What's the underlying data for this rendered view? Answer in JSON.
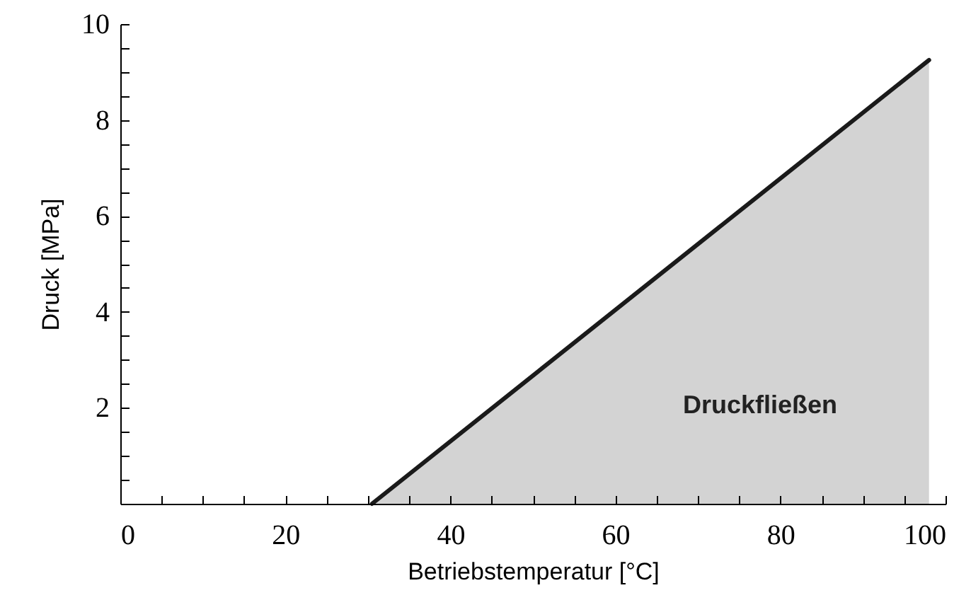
{
  "chart_data": {
    "type": "area",
    "xlabel": "Betriebstemperatur [°C]",
    "ylabel": "Druck [MPa]",
    "xlim": [
      0,
      100
    ],
    "ylim": [
      0,
      10
    ],
    "xticks": [
      0,
      {
        "value": 5,
        "label": null
      },
      {
        "value": 10,
        "label": null
      },
      {
        "value": 15,
        "label": null
      },
      20,
      {
        "value": 25,
        "label": null
      },
      {
        "value": 30,
        "label": null
      },
      {
        "value": 35,
        "label": null
      },
      40,
      {
        "value": 45,
        "label": null
      },
      {
        "value": 50,
        "label": null
      },
      {
        "value": 55,
        "label": null
      },
      60,
      {
        "value": 65,
        "label": null
      },
      {
        "value": 70,
        "label": null
      },
      {
        "value": 75,
        "label": null
      },
      80,
      {
        "value": 85,
        "label": null
      },
      {
        "value": 90,
        "label": null
      },
      {
        "value": 95,
        "label": null
      },
      100
    ],
    "yticks": [
      {
        "value": 0.5,
        "label": null
      },
      {
        "value": 1,
        "label": null
      },
      {
        "value": 1.5,
        "label": null
      },
      2,
      {
        "value": 2.5,
        "label": null
      },
      {
        "value": 3,
        "label": null
      },
      {
        "value": 3.5,
        "label": null
      },
      4,
      {
        "value": 4.5,
        "label": null
      },
      {
        "value": 5,
        "label": null
      },
      {
        "value": 5.5,
        "label": null
      },
      6,
      {
        "value": 6.5,
        "label": null
      },
      {
        "value": 7,
        "label": null
      },
      {
        "value": 7.5,
        "label": null
      },
      8,
      {
        "value": 8.5,
        "label": null
      },
      {
        "value": 9,
        "label": null
      },
      {
        "value": 9.5,
        "label": null
      },
      10
    ],
    "series": [
      {
        "color": "#c0c0c0",
        "x": [
          30.5,
          98
        ],
        "values": [
          0,
          9.25
        ]
      }
    ],
    "annotations": [
      "Druckfließen"
    ],
    "grid": false
  }
}
